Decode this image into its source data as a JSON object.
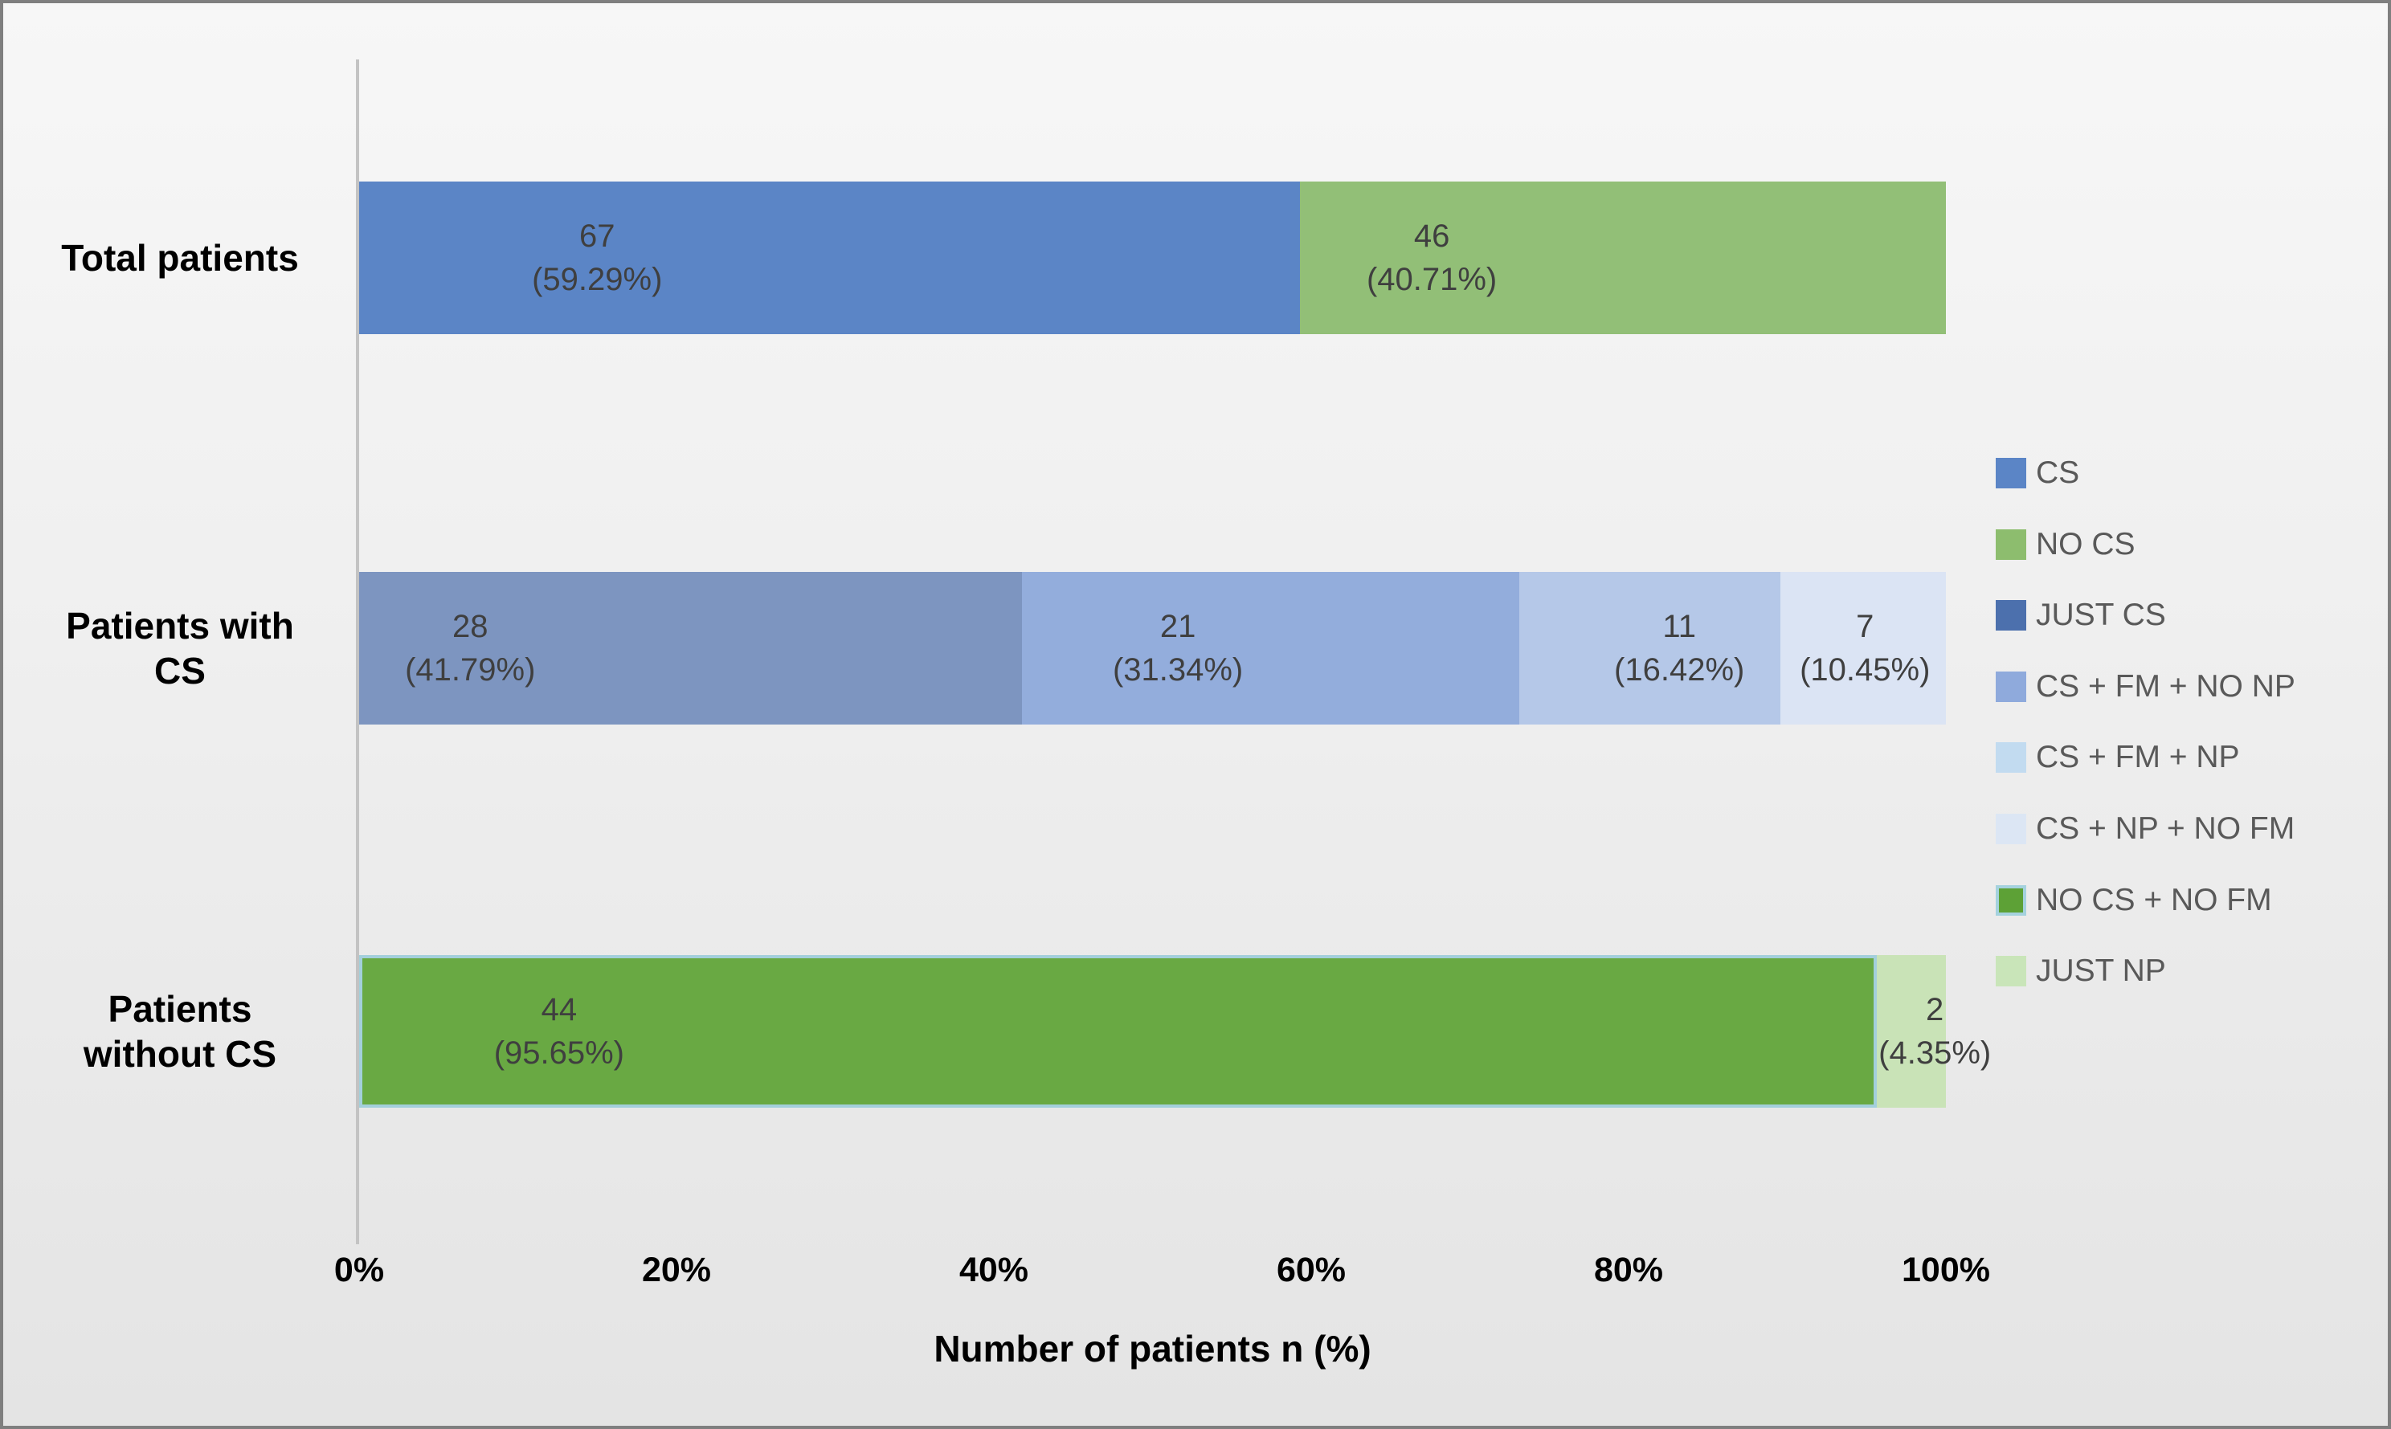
{
  "chart_data": {
    "type": "bar",
    "variant": "horizontal-stacked-100pct",
    "title": "",
    "xlabel": "Number of patients n (%)",
    "ylabel": "",
    "xlim": [
      0,
      100
    ],
    "x_ticks": [
      "0%",
      "20%",
      "40%",
      "60%",
      "80%",
      "100%"
    ],
    "x_tick_values": [
      0,
      20,
      40,
      60,
      80,
      100
    ],
    "grid": "off",
    "legend_position": "right",
    "categories": [
      "Total patients",
      "Patients with\nCS",
      "Patients\nwithout CS"
    ],
    "legend": [
      {
        "label": "CS",
        "color": "#5b85c6",
        "border_color": null
      },
      {
        "label": "NO CS",
        "color": "#8dbd6e",
        "border_color": null
      },
      {
        "label": "JUST CS",
        "color": "#4c70ad",
        "border_color": null
      },
      {
        "label": "CS + FM + NO NP",
        "color": "#8faadc",
        "border_color": null
      },
      {
        "label": "CS + FM + NP",
        "color": "#c2dbf0",
        "border_color": null
      },
      {
        "label": "CS + NP + NO FM",
        "color": "#dce6f4",
        "border_color": null
      },
      {
        "label": "NO CS + NO FM",
        "color": "#5da136",
        "border_color": "#a5d2de"
      },
      {
        "label": "JUST NP",
        "color": "#c9e5b9",
        "border_color": null
      }
    ],
    "rows": [
      {
        "category": "Total patients",
        "segments": [
          {
            "series": "CS",
            "value": 67,
            "pct": 59.29,
            "value_label": "67",
            "pct_label": "(59.29%)",
            "color": "#5b85c6",
            "border_color": null,
            "label_center_pct": 15.0
          },
          {
            "series": "NO CS",
            "value": 46,
            "pct": 40.71,
            "value_label": "46",
            "pct_label": "(40.71%)",
            "color": "#92bf77",
            "border_color": null,
            "label_center_pct": 67.6
          }
        ]
      },
      {
        "category": "Patients with CS",
        "segments": [
          {
            "series": "JUST CS",
            "value": 28,
            "pct": 41.79,
            "value_label": "28",
            "pct_label": "(41.79%)",
            "color": "#7d95c0",
            "border_color": null,
            "label_center_pct": 7.0
          },
          {
            "series": "CS + FM + NO NP",
            "value": 21,
            "pct": 31.34,
            "value_label": "21",
            "pct_label": "(31.34%)",
            "color": "#93addc",
            "border_color": null,
            "label_center_pct": 51.6
          },
          {
            "series": "CS + FM + NP",
            "value": 11,
            "pct": 16.42,
            "value_label": "11",
            "pct_label": "(16.42%)",
            "color": "#b5c8e8",
            "border_color": null,
            "label_center_pct": 83.2
          },
          {
            "series": "CS + NP + NO FM",
            "value": 7,
            "pct": 10.45,
            "value_label": "7",
            "pct_label": "(10.45%)",
            "color": "#dbe4f4",
            "border_color": null,
            "label_center_pct": 94.9
          }
        ]
      },
      {
        "category": "Patients without CS",
        "segments": [
          {
            "series": "NO CS + NO FM",
            "value": 44,
            "pct": 95.65,
            "value_label": "44",
            "pct_label": "(95.65%)",
            "color": "#69a943",
            "border_color": "#a3cfdb",
            "label_center_pct": 12.6
          },
          {
            "series": "JUST NP",
            "value": 2,
            "pct": 4.35,
            "value_label": "2",
            "pct_label": "(4.35%)",
            "color": "#c9e3b7",
            "border_color": null,
            "label_center_pct": 99.3
          }
        ]
      }
    ]
  }
}
